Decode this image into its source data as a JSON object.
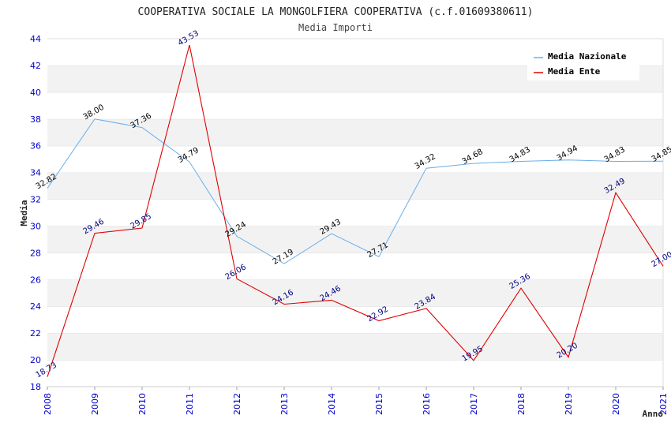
{
  "chart_data": {
    "type": "line",
    "title": "COOPERATIVA SOCIALE LA MONGOLFIERA COOPERATIVA (c.f.01609380611)",
    "subtitle": "Media Importi",
    "xlabel": "Anno",
    "ylabel": "Media",
    "ylim": [
      18,
      44
    ],
    "yticks": [
      18,
      20,
      22,
      24,
      26,
      28,
      30,
      32,
      34,
      36,
      38,
      40,
      42,
      44
    ],
    "categories": [
      "2008",
      "2009",
      "2010",
      "2011",
      "2012",
      "2013",
      "2014",
      "2015",
      "2016",
      "2017",
      "2018",
      "2019",
      "2020",
      "2021"
    ],
    "legend_position": "top-right",
    "series": [
      {
        "name": "Media Nazionale",
        "color": "#6aaee8",
        "values": [
          32.82,
          38.0,
          37.36,
          34.79,
          29.24,
          27.19,
          29.43,
          27.71,
          34.32,
          34.68,
          34.83,
          34.94,
          34.83,
          34.85
        ],
        "labels": [
          "32.82",
          "38.00",
          "37.36",
          "34.79",
          "29.24",
          "27.19",
          "29.43",
          "27.71",
          "34.32",
          "34.68",
          "34.83",
          "34.94",
          "34.83",
          "34.85"
        ]
      },
      {
        "name": "Media Ente",
        "color": "#e00000",
        "values": [
          18.73,
          29.46,
          29.85,
          43.53,
          26.06,
          24.16,
          24.46,
          22.92,
          23.84,
          19.95,
          25.36,
          20.2,
          32.49,
          27.0
        ],
        "labels": [
          "18.73",
          "29.46",
          "29.85",
          "43.53",
          "26.06",
          "24.16",
          "24.46",
          "22.92",
          "23.84",
          "19.95",
          "25.36",
          "20.20",
          "32.49",
          "27.00"
        ]
      }
    ]
  }
}
